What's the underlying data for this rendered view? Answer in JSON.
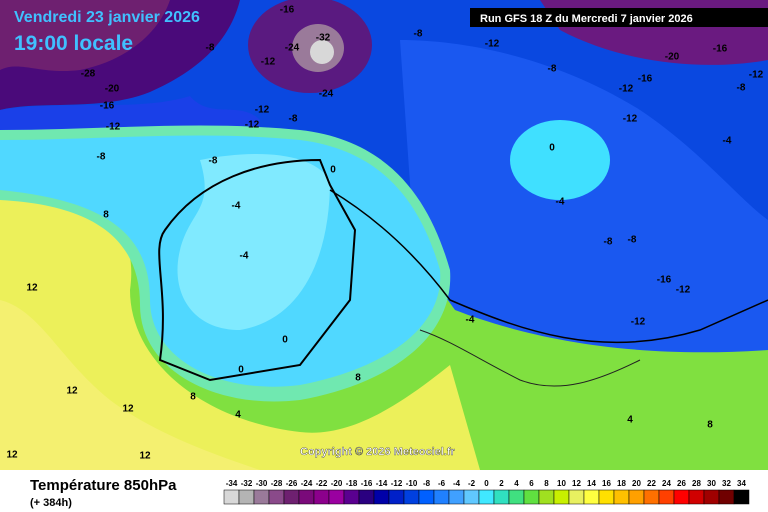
{
  "header": {
    "date": "Vendredi 23 janvier 2026",
    "time": "19:00 locale",
    "run": "Run GFS 18 Z du Mercredi 7 janvier 2026"
  },
  "copyright": "Copyright © 2026 Meteociel.fr",
  "footer": {
    "title": "Température 850hPa",
    "lead": "(+ 384h)"
  },
  "map_labels": [
    "-28",
    "-20",
    "-16",
    "-12",
    "-8",
    "-8",
    "-16",
    "-24",
    "-32",
    "-12",
    "-24",
    "-12",
    "-8",
    "-12",
    "-8",
    "-4",
    "-4",
    "0",
    "0",
    "-4",
    "-8",
    "-8",
    "-12",
    "-16",
    "-12",
    "-8",
    "-12",
    "-12",
    "-16",
    "-20",
    "-16",
    "-12",
    "-8",
    "-4",
    "4",
    "8",
    "12",
    "12",
    "12",
    "8",
    "0",
    "0",
    "-4",
    "8",
    "12",
    "12",
    "8",
    "4",
    "-8",
    "-12"
  ],
  "color_scale": {
    "values": [
      -34,
      -32,
      -30,
      -28,
      -26,
      -24,
      -22,
      -20,
      -18,
      -16,
      -14,
      -12,
      -10,
      -8,
      -6,
      -4,
      -2,
      0,
      2,
      4,
      6,
      8,
      10,
      12,
      14,
      16,
      18,
      20,
      22,
      24,
      26,
      28,
      30,
      32,
      34
    ],
    "colors": [
      "#d8d8d8",
      "#b4b4b4",
      "#9a7a9a",
      "#8a4a8a",
      "#6e2070",
      "#7a0a7a",
      "#8c008c",
      "#9a00a0",
      "#5a0090",
      "#2a0080",
      "#0000a8",
      "#0020c8",
      "#0040e0",
      "#0060ff",
      "#2080ff",
      "#40a0ff",
      "#60c8ff",
      "#40e8ff",
      "#30e0c0",
      "#40e080",
      "#60e040",
      "#a0e020",
      "#c8f000",
      "#e8f060",
      "#ffff40",
      "#ffe000",
      "#ffc000",
      "#ffa000",
      "#ff7000",
      "#ff4000",
      "#ff0000",
      "#d00000",
      "#a00000",
      "#700000",
      "#000000"
    ]
  }
}
